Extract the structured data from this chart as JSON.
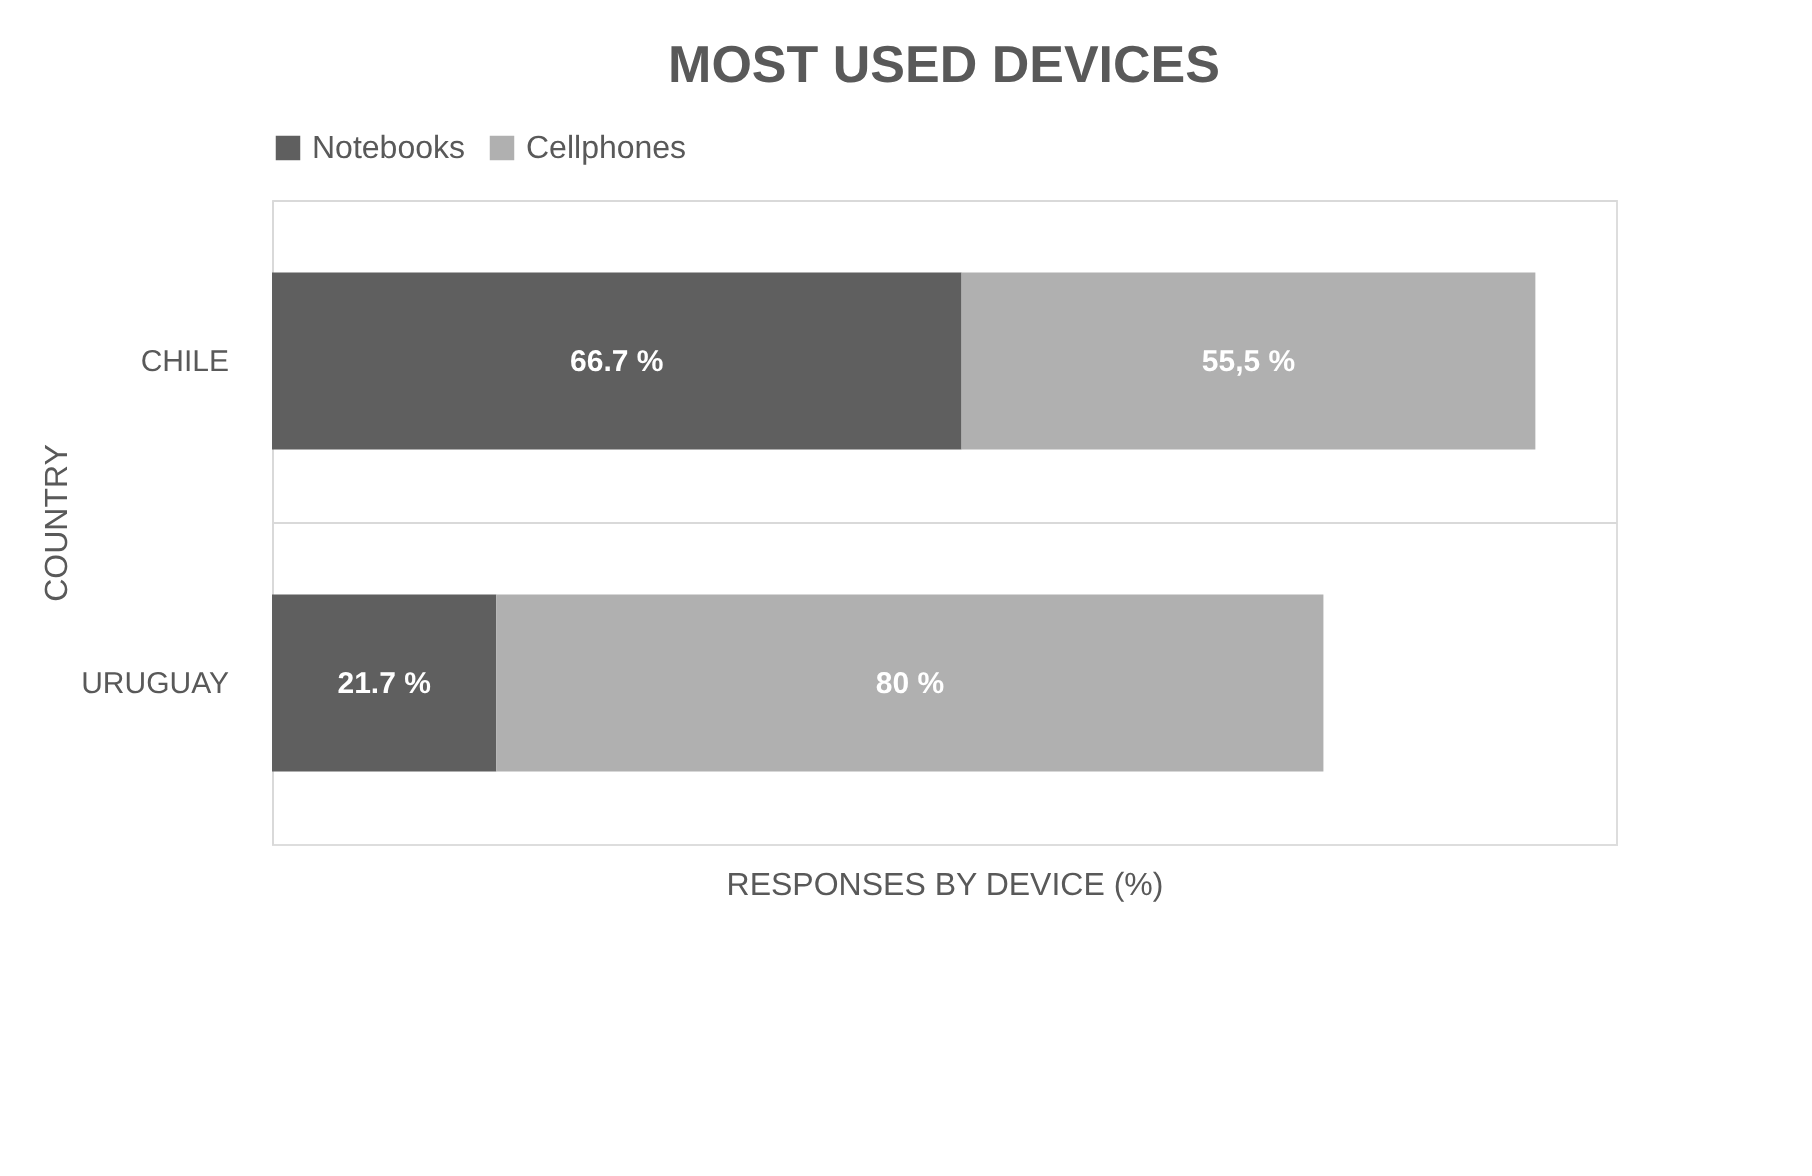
{
  "chart_data": {
    "type": "bar",
    "orientation": "horizontal",
    "stacked": true,
    "title": "MOST USED DEVICES",
    "xlabel": "RESPONSES BY DEVICE (%)",
    "ylabel": "COUNTRY",
    "categories": [
      "CHILE",
      "URUGUAY"
    ],
    "series": [
      {
        "name": "Notebooks",
        "color": "#5f5f5f",
        "values": [
          66.7,
          21.7
        ],
        "value_labels": [
          "66.7 %",
          "21.7 %"
        ]
      },
      {
        "name": "Cellphones",
        "color": "#b0b0b0",
        "values": [
          55.5,
          80
        ],
        "value_labels": [
          "55,5 %",
          "80 %"
        ]
      }
    ],
    "legend": "top",
    "grid": "y",
    "tick_labels": "y"
  }
}
